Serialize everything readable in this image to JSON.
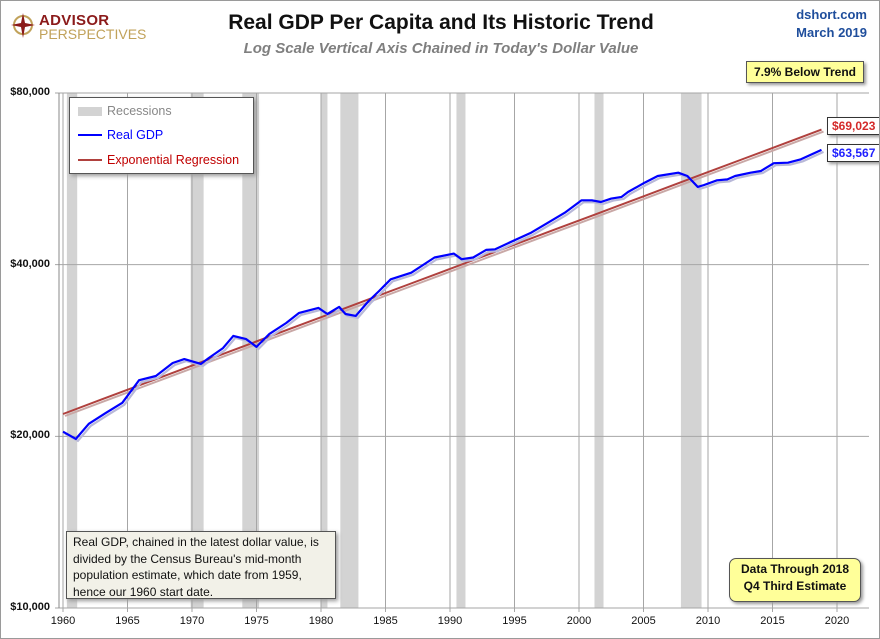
{
  "logo": {
    "line1": "ADVISOR",
    "line2": "PERSPECTIVES"
  },
  "header": {
    "title": "Real GDP Per Capita and Its Historic Trend",
    "subtitle": "Log Scale Vertical Axis Chained in Today's Dollar Value",
    "source": "dshort.com",
    "date": "March 2019"
  },
  "annotations": {
    "trend_badge": "7.9% Below Trend",
    "regression_end_label": "$69,023",
    "gdp_end_label": "$63,567",
    "data_through_line1": "Data Through 2018",
    "data_through_line2": "Q4 Third Estimate",
    "note": "Real GDP, chained in the latest dollar value, is divided by the Census Bureau's mid-month population estimate, which date from 1959, hence our 1960 start date."
  },
  "colors": {
    "gdp": "#0000ff",
    "regression": "#b0413e",
    "recession": "#d3d3d3",
    "grid": "#a6a6a6",
    "badge": "#ffff99"
  },
  "chart_data": {
    "type": "line",
    "title": "Real GDP Per Capita and Its Historic Trend",
    "subtitle": "Log Scale Vertical Axis Chained in Today's Dollar Value",
    "y_scale": "log",
    "ylim": [
      10000,
      80000
    ],
    "xlim": [
      1960,
      2022
    ],
    "y_ticks": [
      10000,
      20000,
      40000,
      80000
    ],
    "y_tick_labels": [
      "$10,000",
      "$20,000",
      "$40,000",
      "$80,000"
    ],
    "x_ticks": [
      1960,
      1965,
      1970,
      1975,
      1980,
      1985,
      1990,
      1995,
      2000,
      2005,
      2010,
      2015,
      2020
    ],
    "x_tick_labels": [
      "1960",
      "1965",
      "1970",
      "1975",
      "1980",
      "1985",
      "1990",
      "1995",
      "2000",
      "2005",
      "2010",
      "2015",
      "2020"
    ],
    "grid": true,
    "legend": {
      "placement": "top-left",
      "entries": [
        "Recessions",
        "Real GDP",
        "Exponential Regression"
      ]
    },
    "recessions": [
      [
        1960.3,
        1961.1
      ],
      [
        1969.9,
        1970.9
      ],
      [
        1973.9,
        1975.2
      ],
      [
        1980.0,
        1980.5
      ],
      [
        1981.5,
        1982.9
      ],
      [
        1990.5,
        1991.2
      ],
      [
        2001.2,
        2001.9
      ],
      [
        2007.9,
        2009.5
      ]
    ],
    "series": [
      {
        "name": "Real GDP",
        "x": [
          1960.0,
          1961.0,
          1962.0,
          1963.3,
          1964.6,
          1965.9,
          1967.2,
          1968.5,
          1969.4,
          1970.7,
          1971.3,
          1972.4,
          1973.2,
          1974.2,
          1975.0,
          1976.0,
          1977.3,
          1978.3,
          1979.8,
          1980.5,
          1981.4,
          1981.9,
          1982.7,
          1983.7,
          1984.5,
          1985.4,
          1987.0,
          1988.8,
          1990.3,
          1990.9,
          1991.8,
          1992.8,
          1993.5,
          1995.0,
          1996.3,
          1997.6,
          1998.9,
          2000.2,
          2001.0,
          2001.7,
          2002.5,
          2003.3,
          2003.8,
          2005.1,
          2006.1,
          2007.7,
          2008.4,
          2009.2,
          2009.7,
          2010.7,
          2011.5,
          2012.1,
          2013.3,
          2014.1,
          2015.1,
          2016.2,
          2017.2,
          2018.8
        ],
        "values": [
          20380,
          19790,
          21040,
          21970,
          22900,
          25090,
          25520,
          26890,
          27320,
          26800,
          27440,
          28560,
          30000,
          29620,
          28700,
          30250,
          31610,
          32920,
          33590,
          32780,
          33730,
          32780,
          32530,
          34540,
          35960,
          37710,
          38720,
          41170,
          41820,
          40890,
          41170,
          42450,
          42560,
          44150,
          45530,
          47380,
          49330,
          51870,
          51870,
          51520,
          52220,
          52590,
          53650,
          55710,
          57230,
          57980,
          57230,
          54750,
          55180,
          56240,
          56440,
          57230,
          57980,
          58380,
          60250,
          60370,
          61220,
          63567
        ]
      },
      {
        "name": "Exponential Regression",
        "x": [
          1960.0,
          2018.8
        ],
        "values": [
          21890,
          69023
        ]
      }
    ]
  }
}
